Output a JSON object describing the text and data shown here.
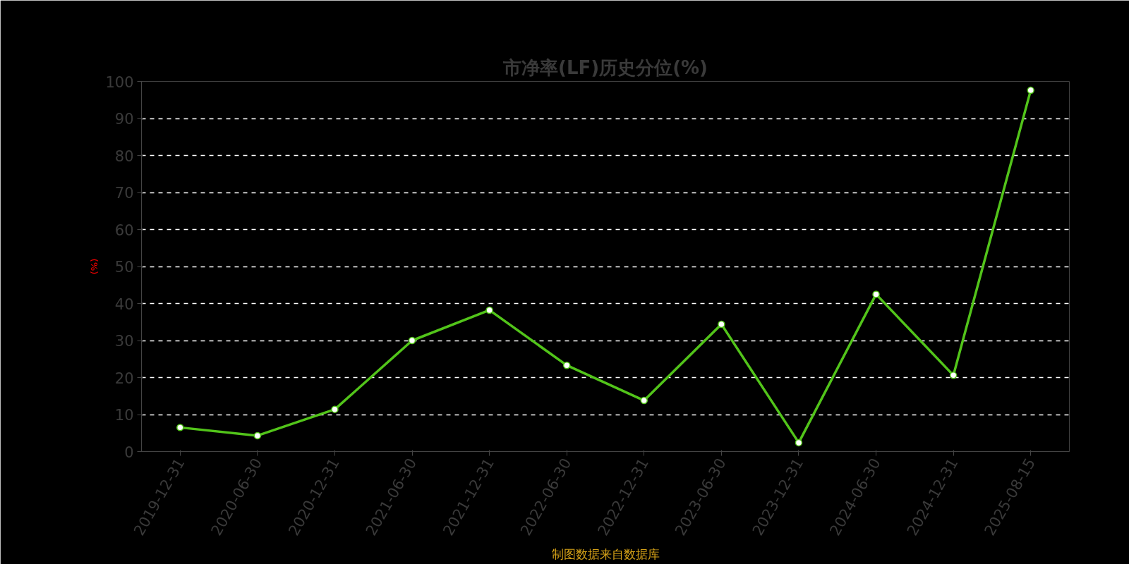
{
  "chart_data": {
    "type": "line",
    "title": "市净率(LF)历史分位(%)",
    "ylabel": "(%)",
    "categories": [
      "2019-12-31",
      "2020-06-30",
      "2020-12-31",
      "2021-06-30",
      "2021-12-31",
      "2022-06-30",
      "2022-12-31",
      "2023-06-30",
      "2023-12-31",
      "2024-06-30",
      "2024-12-31",
      "2025-08-15"
    ],
    "series": [
      {
        "color": "#52c41a",
        "values": [
          6.5,
          4.3,
          11.4,
          30.0,
          38.2,
          23.3,
          13.8,
          34.4,
          2.4,
          42.5,
          20.6,
          97.6
        ]
      }
    ],
    "ylim": [
      0,
      100
    ],
    "yticks": [
      0,
      10,
      20,
      30,
      40,
      50,
      60,
      70,
      80,
      90,
      100
    ],
    "grid": "y",
    "marker": "circle",
    "line_style": "solid",
    "annotations": [
      "制图数据来自数据库"
    ]
  }
}
